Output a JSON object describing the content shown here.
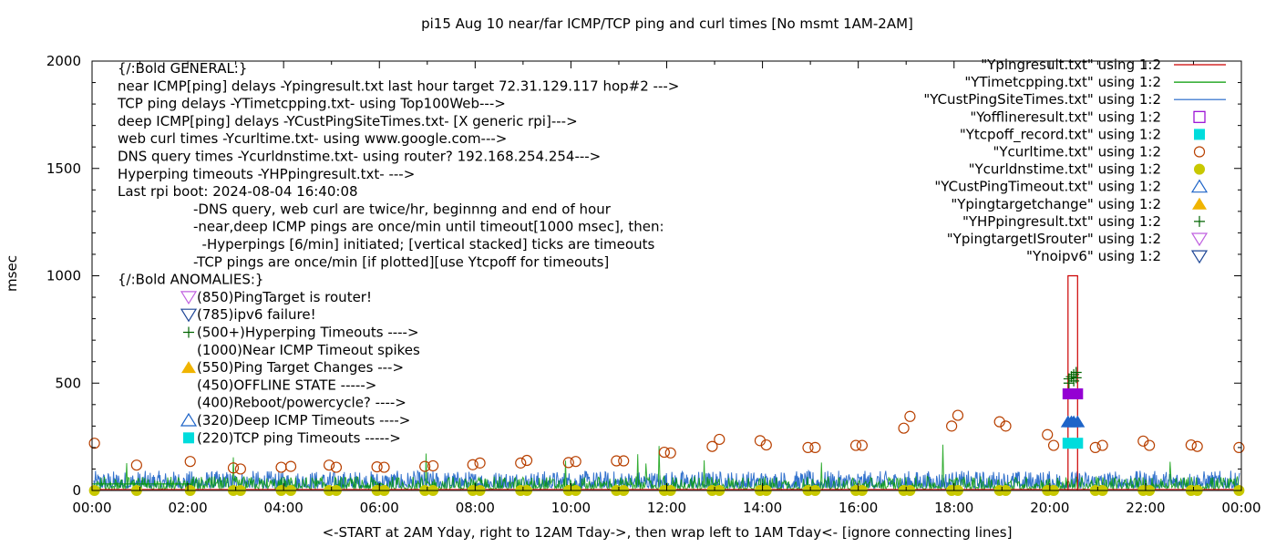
{
  "chart_data": {
    "type": "line",
    "title": "pi15 Aug 10  near/far ICMP/TCP ping and curl times [No msmt 1AM-2AM]",
    "xlabel": "<-START at 2AM Yday, right to 12AM Tday->, then wrap left to 1AM Tday<- [ignore connecting lines]",
    "ylabel": "msec",
    "xlim": [
      0,
      24
    ],
    "ylim": [
      0,
      2000
    ],
    "x_ticks": [
      "00:00",
      "02:00",
      "04:00",
      "06:00",
      "08:00",
      "10:00",
      "12:00",
      "14:00",
      "16:00",
      "18:00",
      "20:00",
      "22:00",
      "00:00"
    ],
    "y_ticks": [
      "0",
      "500",
      "1000",
      "1500",
      "2000"
    ],
    "grid": false,
    "legend_position": "top-right",
    "legend": [
      {
        "label": "\"Ypingresult.txt\" using 1:2",
        "symbol": "line",
        "color": "#cc0000"
      },
      {
        "label": "\"YTimetcpping.txt\" using 1:2",
        "symbol": "line",
        "color": "#009900"
      },
      {
        "label": "\"YCustPingSiteTimes.txt\" using 1:2",
        "symbol": "line",
        "color": "#1e64c8"
      },
      {
        "label": "\"Yofflineresult.txt\" using 1:2",
        "symbol": "open-square",
        "color": "#9400d3"
      },
      {
        "label": "\"Ytcpoff_record.txt\" using 1:2",
        "symbol": "filled-square",
        "color": "#00dcdc"
      },
      {
        "label": "\"Ycurltime.txt\" using 1:2",
        "symbol": "open-circle",
        "color": "#b84000"
      },
      {
        "label": "\"Ycurldnstime.txt\" using 1:2",
        "symbol": "filled-circle",
        "color": "#c8c800"
      },
      {
        "label": "\"YCustPingTimeout.txt\" using 1:2",
        "symbol": "open-triangle-up",
        "color": "#1e64c8"
      },
      {
        "label": "\"Ypingtargetchange\" using 1:2",
        "symbol": "filled-triangle-up",
        "color": "#f0b400"
      },
      {
        "label": "\"YHPpingresult.txt\" using 1:2",
        "symbol": "plus",
        "color": "#006400"
      },
      {
        "label": "\"YpingtargetISrouter\" using 1:2",
        "symbol": "open-triangle-down",
        "color": "#c060e0"
      },
      {
        "label": "\"Ynoipv6\" using 1:2",
        "symbol": "open-triangle-down",
        "color": "#1e4696"
      }
    ],
    "annotations_general": [
      "{/:Bold GENERAL:}",
      "near ICMP[ping] delays -Ypingresult.txt last hour target 72.31.129.117 hop#2 --->",
      "TCP ping delays -YTimetcpping.txt- using Top100Web--->",
      "deep ICMP[ping] delays -YCustPingSiteTimes.txt- [X generic rpi]--->",
      "web curl times -Ycurltime.txt- using www.google.com--->",
      "DNS query times -Ycurldnstime.txt- using router? 192.168.254.254--->",
      "Hyperping timeouts -YHPpingresult.txt- --->",
      "Last rpi boot: 2024-08-04 16:40:08"
    ],
    "annotations_notes": [
      "-DNS query, web curl are twice/hr, beginnng and end of hour",
      "-near,deep ICMP pings are once/min until timeout[1000 msec], then:",
      "  -Hyperpings [6/min] initiated; [vertical stacked] ticks are timeouts",
      "-TCP pings are once/min [if plotted][use Ytcpoff for timeouts]"
    ],
    "annotations_anomalies_title": "{/:Bold ANOMALIES:}",
    "annotations_anomalies": [
      {
        "text": "(850)PingTarget is router!",
        "symbol": "open-triangle-down",
        "color": "#c060e0"
      },
      {
        "text": "(785)ipv6 failure!",
        "symbol": "open-triangle-down",
        "color": "#1e4696"
      },
      {
        "text": "(500+)Hyperping Timeouts ---->",
        "symbol": "plus",
        "color": "#006400"
      },
      {
        "text": "(1000)Near ICMP Timeout spikes",
        "symbol": "none",
        "color": ""
      },
      {
        "text": "(550)Ping Target Changes --->",
        "symbol": "filled-triangle-up",
        "color": "#f0b400"
      },
      {
        "text": "(450)OFFLINE STATE ----->",
        "symbol": "none",
        "color": ""
      },
      {
        "text": "(400)Reboot/powercycle? ---->",
        "symbol": "none",
        "color": ""
      },
      {
        "text": "(320)Deep ICMP Timeouts ---->",
        "symbol": "open-triangle-up",
        "color": "#1e64c8"
      },
      {
        "text": "(220)TCP ping Timeouts ----->",
        "symbol": "filled-square",
        "color": "#00dcdc"
      }
    ],
    "series": [
      {
        "name": "\"Ycurltime.txt\" using 1:2",
        "marker": "open-circle",
        "color": "#b84000",
        "points": [
          [
            0.05,
            220
          ],
          [
            0.93,
            118
          ],
          [
            2.05,
            135
          ],
          [
            2.95,
            105
          ],
          [
            3.1,
            100
          ],
          [
            3.95,
            108
          ],
          [
            4.15,
            112
          ],
          [
            4.95,
            118
          ],
          [
            5.1,
            108
          ],
          [
            5.95,
            110
          ],
          [
            6.1,
            108
          ],
          [
            6.95,
            112
          ],
          [
            7.12,
            115
          ],
          [
            7.95,
            120
          ],
          [
            8.1,
            128
          ],
          [
            8.95,
            128
          ],
          [
            9.08,
            140
          ],
          [
            9.95,
            130
          ],
          [
            10.1,
            135
          ],
          [
            10.95,
            138
          ],
          [
            11.1,
            138
          ],
          [
            11.95,
            178
          ],
          [
            12.08,
            175
          ],
          [
            12.95,
            205
          ],
          [
            13.1,
            238
          ],
          [
            13.95,
            232
          ],
          [
            14.08,
            212
          ],
          [
            14.95,
            200
          ],
          [
            15.1,
            200
          ],
          [
            15.95,
            210
          ],
          [
            16.08,
            210
          ],
          [
            16.95,
            290
          ],
          [
            17.08,
            345
          ],
          [
            17.95,
            300
          ],
          [
            18.08,
            350
          ],
          [
            18.95,
            320
          ],
          [
            19.08,
            300
          ],
          [
            19.95,
            260
          ],
          [
            20.08,
            210
          ],
          [
            20.95,
            200
          ],
          [
            21.1,
            210
          ],
          [
            21.95,
            230
          ],
          [
            22.08,
            210
          ],
          [
            22.95,
            212
          ],
          [
            23.08,
            205
          ],
          [
            23.95,
            200
          ]
        ]
      },
      {
        "name": "\"Ycurldnstime.txt\" using 1:2",
        "marker": "filled-circle",
        "color": "#c8c800",
        "points": [
          [
            0.05,
            0
          ],
          [
            0.93,
            0
          ],
          [
            2.05,
            0
          ],
          [
            2.95,
            0
          ],
          [
            3.1,
            0
          ],
          [
            3.95,
            0
          ],
          [
            4.15,
            0
          ],
          [
            4.95,
            0
          ],
          [
            5.1,
            0
          ],
          [
            5.95,
            0
          ],
          [
            6.1,
            0
          ],
          [
            6.95,
            0
          ],
          [
            7.12,
            0
          ],
          [
            7.95,
            0
          ],
          [
            8.1,
            0
          ],
          [
            8.95,
            0
          ],
          [
            9.08,
            0
          ],
          [
            9.95,
            0
          ],
          [
            10.1,
            0
          ],
          [
            10.95,
            0
          ],
          [
            11.1,
            0
          ],
          [
            11.95,
            0
          ],
          [
            12.08,
            0
          ],
          [
            12.95,
            0
          ],
          [
            13.1,
            0
          ],
          [
            13.95,
            0
          ],
          [
            14.08,
            0
          ],
          [
            14.95,
            0
          ],
          [
            15.1,
            0
          ],
          [
            15.95,
            0
          ],
          [
            16.08,
            0
          ],
          [
            16.95,
            0
          ],
          [
            17.08,
            0
          ],
          [
            17.95,
            0
          ],
          [
            18.08,
            0
          ],
          [
            18.95,
            0
          ],
          [
            19.08,
            0
          ],
          [
            19.95,
            0
          ],
          [
            20.08,
            0
          ],
          [
            20.95,
            0
          ],
          [
            21.1,
            0
          ],
          [
            21.95,
            0
          ],
          [
            22.08,
            0
          ],
          [
            22.95,
            0
          ],
          [
            23.08,
            0
          ],
          [
            23.95,
            0
          ]
        ]
      },
      {
        "name": "\"Ypingresult.txt\" using 1:2",
        "marker": "none",
        "color": "#cc0000",
        "points": [
          [
            20.38,
            0
          ],
          [
            20.38,
            1000
          ],
          [
            20.58,
            1000
          ],
          [
            20.58,
            0
          ]
        ]
      },
      {
        "name": "\"YHPpingresult.txt\" using 1:2",
        "marker": "plus",
        "color": "#006400",
        "points": [
          [
            20.4,
            520
          ],
          [
            20.45,
            530
          ],
          [
            20.5,
            540
          ],
          [
            20.55,
            550
          ],
          [
            20.4,
            500
          ],
          [
            20.5,
            510
          ],
          [
            20.55,
            525
          ]
        ]
      },
      {
        "name": "\"Yofflineresult.txt\" using 1:2",
        "marker": "filled-square",
        "color": "#9400d3",
        "points": [
          [
            20.38,
            450
          ],
          [
            20.58,
            450
          ]
        ]
      },
      {
        "name": "\"YCustPingTimeout.txt\" using 1:2",
        "marker": "filled-triangle-up",
        "color": "#1e64c8",
        "points": [
          [
            20.38,
            320
          ],
          [
            20.45,
            320
          ],
          [
            20.5,
            320
          ],
          [
            20.58,
            320
          ]
        ]
      },
      {
        "name": "\"Ytcpoff_record.txt\" using 1:2",
        "marker": "filled-square",
        "color": "#00dcdc",
        "points": [
          [
            20.38,
            220
          ],
          [
            20.58,
            220
          ]
        ]
      }
    ],
    "noise_series": [
      {
        "name": "\"YCustPingSiteTimes.txt\" using 1:2",
        "color": "#1e64c8",
        "typical_max": 80
      },
      {
        "name": "\"YTimetcpping.txt\" using 1:2",
        "color": "#009900",
        "typical_max": 60
      }
    ]
  }
}
